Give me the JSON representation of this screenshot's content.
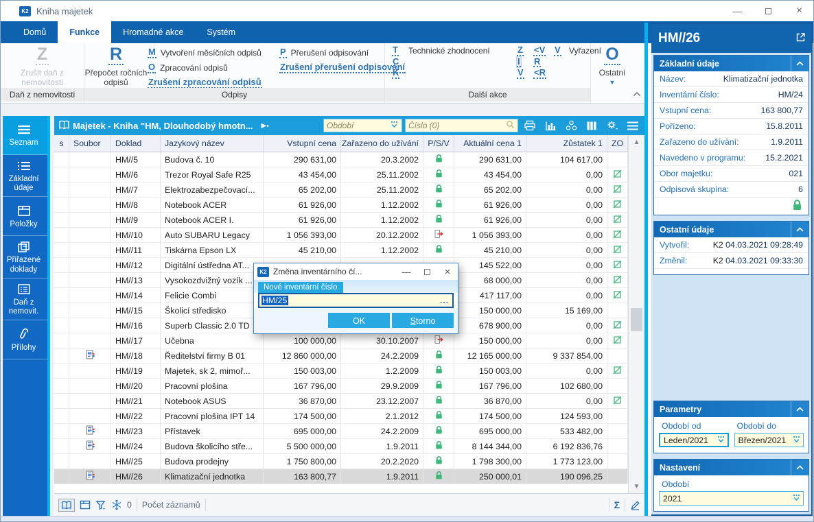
{
  "window": {
    "title": "Kniha majetek"
  },
  "ribbon": {
    "tabs": [
      {
        "label": "Domů"
      },
      {
        "label": "Funkce",
        "active": true
      },
      {
        "label": "Hromadné akce"
      },
      {
        "label": "Systém"
      }
    ],
    "dan_group": {
      "label": "Daň z nemovitosti",
      "big_letter": "Z",
      "big_caption": "Zrušit daň z nemovitosti"
    },
    "odpisy_group": {
      "label": "Odpisy",
      "big_letter": "R",
      "big_caption": "Přepočet ročních odpisů",
      "col1": [
        {
          "letter": "M",
          "text": "Vytvoření měsíčních odpisů"
        },
        {
          "letter": "O",
          "text": "Zpracování odpisů"
        },
        {
          "letter": "<O",
          "text": "Zrušení zpracování odpisů"
        }
      ],
      "col2": [
        {
          "letter": "P",
          "text": "Přerušení odpisování"
        },
        {
          "letter": "<P",
          "text": "Zrušení přerušení odpisování"
        }
      ]
    },
    "dalsi_group": {
      "label": "Další akce",
      "rows": [
        {
          "a": "T",
          "alabel": "Technické zhodnocení",
          "b": "Z",
          "c": "<V",
          "d": "V",
          "dlabel": "Vyřazení"
        },
        {
          "a": "C",
          "alabel": "",
          "b": "I",
          "b_highlight": true,
          "c": "R",
          "d": "",
          "dlabel": ""
        },
        {
          "a": "K",
          "alabel": "",
          "b": "V",
          "c": "<R",
          "d": "",
          "dlabel": ""
        }
      ]
    },
    "ostatni_group": {
      "big_letter": "O",
      "caption": "Ostatní"
    }
  },
  "sidebar": {
    "items": [
      {
        "label": "Seznam",
        "icon": "menu-icon",
        "active": true
      },
      {
        "label": "Základní údaje",
        "icon": "list-icon"
      },
      {
        "label": "Položky",
        "icon": "box-icon"
      },
      {
        "label": "Přiřazené doklady",
        "icon": "documents-icon"
      },
      {
        "label": "Daň z nemovit.",
        "icon": "form-icon"
      },
      {
        "label": "Přílohy",
        "icon": "paperclip-icon"
      }
    ]
  },
  "table": {
    "title": "Majetek - Kniha \"HM, Dlouhodobý hmotn...",
    "obdobi_placeholder": "Období",
    "cislo_placeholder": "Číslo (0)",
    "columns": [
      "s",
      "Soubor",
      "Doklad",
      "Jazykový název",
      "Vstupní cena",
      "Zařazeno do užívání",
      "P/S/V",
      "Aktuální cena 1",
      "Zůstatek 1",
      "ZO"
    ],
    "rows": [
      {
        "doklad": "HM//5",
        "soubor": false,
        "nazev": "Budova č. 10",
        "vstupni": "290 631,00",
        "zarazeno": "20.3.2002",
        "psv": "lock",
        "aktualni": "290 631,00",
        "zustatek": "104 617,00",
        "zo": false
      },
      {
        "doklad": "HM//6",
        "soubor": false,
        "nazev": "Trezor Royal Safe R25",
        "vstupni": "43 454,00",
        "zarazeno": "25.11.2002",
        "psv": "lock",
        "aktualni": "43 454,00",
        "zustatek": "0,00",
        "zo": true
      },
      {
        "doklad": "HM//7",
        "soubor": false,
        "nazev": "Elektrozabezpečovací...",
        "vstupni": "65 202,00",
        "zarazeno": "25.11.2002",
        "psv": "lock",
        "aktualni": "65 202,00",
        "zustatek": "0,00",
        "zo": true
      },
      {
        "doklad": "HM//8",
        "soubor": false,
        "nazev": "Notebook ACER",
        "vstupni": "61 926,00",
        "zarazeno": "1.12.2002",
        "psv": "lock",
        "aktualni": "61 926,00",
        "zustatek": "0,00",
        "zo": true
      },
      {
        "doklad": "HM//9",
        "soubor": false,
        "nazev": "Notebook ACER I.",
        "vstupni": "61 926,00",
        "zarazeno": "1.12.2002",
        "psv": "lock",
        "aktualni": "61 926,00",
        "zustatek": "0,00",
        "zo": true
      },
      {
        "doklad": "HM//10",
        "soubor": false,
        "nazev": "Auto SUBARU Legacy",
        "vstupni": "1 056 393,00",
        "zarazeno": "20.12.2002",
        "psv": "exit",
        "aktualni": "1 056 393,00",
        "zustatek": "0,00",
        "zo": true
      },
      {
        "doklad": "HM//11",
        "soubor": false,
        "nazev": "Tiskárna Epson LX",
        "vstupni": "45 210,00",
        "zarazeno": "1.12.2002",
        "psv": "lock",
        "aktualni": "45 210,00",
        "zustatek": "0,00",
        "zo": true
      },
      {
        "doklad": "HM//12",
        "soubor": false,
        "nazev": "Digitální ústředna AT...",
        "vstupni": "",
        "zarazeno": "",
        "psv": "",
        "aktualni": "145 522,00",
        "zustatek": "0,00",
        "zo": true
      },
      {
        "doklad": "HM//13",
        "soubor": false,
        "nazev": "Vysokozdvižný vozík ...",
        "vstupni": "",
        "zarazeno": "",
        "psv": "",
        "aktualni": "68 000,00",
        "zustatek": "0,00",
        "zo": true
      },
      {
        "doklad": "HM//14",
        "soubor": false,
        "nazev": "Felicie Combi",
        "vstupni": "",
        "zarazeno": "",
        "psv": "",
        "aktualni": "417 117,00",
        "zustatek": "0,00",
        "zo": true
      },
      {
        "doklad": "HM//15",
        "soubor": false,
        "nazev": "Školicí středisko",
        "vstupni": "",
        "zarazeno": "",
        "psv": "",
        "aktualni": "150 000,00",
        "zustatek": "15 169,00",
        "zo": false
      },
      {
        "doklad": "HM//16",
        "soubor": false,
        "nazev": "Superb Classic  2.0 TD",
        "vstupni": "",
        "zarazeno": "",
        "psv": "",
        "aktualni": "678 900,00",
        "zustatek": "0,00",
        "zo": true
      },
      {
        "doklad": "HM//17",
        "soubor": false,
        "nazev": "Učebna",
        "vstupni": "100 000,00",
        "zarazeno": "30.10.2007",
        "psv": "exit",
        "aktualni": "150 000,00",
        "zustatek": "0,00",
        "zo": true
      },
      {
        "doklad": "HM//18",
        "soubor": true,
        "nazev": "Ředitelství firmy B 01",
        "vstupni": "12 860 000,00",
        "zarazeno": "24.2.2009",
        "psv": "lock",
        "aktualni": "12 165 000,00",
        "zustatek": "9 337 854,00",
        "zo": false
      },
      {
        "doklad": "HM//19",
        "soubor": false,
        "nazev": "Majetek, sk 2, mimoř...",
        "vstupni": "150 003,00",
        "zarazeno": "1.2.2009",
        "psv": "lock",
        "aktualni": "150 003,00",
        "zustatek": "0,00",
        "zo": true
      },
      {
        "doklad": "HM//20",
        "soubor": false,
        "nazev": "Pracovní plošina",
        "vstupni": "167 796,00",
        "zarazeno": "29.9.2009",
        "psv": "lock",
        "aktualni": "167 796,00",
        "zustatek": "102 680,00",
        "zo": false
      },
      {
        "doklad": "HM//21",
        "soubor": false,
        "nazev": "Notebook ASUS",
        "vstupni": "36 870,00",
        "zarazeno": "23.12.2007",
        "psv": "lock",
        "aktualni": "36 870,00",
        "zustatek": "0,00",
        "zo": true
      },
      {
        "doklad": "HM//22",
        "soubor": false,
        "nazev": "Pracovní plošina IPT 14",
        "vstupni": "174 500,00",
        "zarazeno": "2.1.2012",
        "psv": "lock",
        "aktualni": "174 500,00",
        "zustatek": "124 593,00",
        "zo": false
      },
      {
        "doklad": "HM//23",
        "soubor": true,
        "nazev": "Přístavek",
        "vstupni": "695 000,00",
        "zarazeno": "24.2.2009",
        "psv": "lock",
        "aktualni": "695 000,00",
        "zustatek": "533 482,00",
        "zo": false
      },
      {
        "doklad": "HM//24",
        "soubor": true,
        "nazev": "Budova školicího stře...",
        "vstupni": "5 500 000,00",
        "zarazeno": "1.9.2011",
        "psv": "lock",
        "aktualni": "8 144 344,00",
        "zustatek": "6 192 836,76",
        "zo": false
      },
      {
        "doklad": "HM//25",
        "soubor": false,
        "nazev": "Budova prodejny",
        "vstupni": "1 750 800,00",
        "zarazeno": "20.2.2020",
        "psv": "lock",
        "aktualni": "1 798 300,00",
        "zustatek": "1 773 123,00",
        "zo": false
      },
      {
        "doklad": "HM//26",
        "soubor": true,
        "nazev": "Klimatizační jednotka",
        "vstupni": "163 800,77",
        "zarazeno": "1.9.2011",
        "psv": "lock",
        "aktualni": "250 000,01",
        "zustatek": "190 096,25",
        "zo": false,
        "selected": true
      }
    ],
    "footer": {
      "snow_count": "0",
      "count_label": "Počet záznamů"
    }
  },
  "dialog": {
    "title": "Změna inventárního čí...",
    "field_label": "Nové inventární číslo",
    "field_value": "HM/25",
    "browse_label": "...",
    "ok_label": "OK",
    "cancel_label": "Storno"
  },
  "detail_panel": {
    "title": "HM//26",
    "zakladni": {
      "title": "Základní údaje",
      "fields": [
        {
          "label": "Název:",
          "value": "Klimatizační jednotka"
        },
        {
          "label": "Inventární číslo:",
          "value": "HM/24"
        },
        {
          "label": "Vstupní cena:",
          "value": "163 800,77"
        },
        {
          "label": "Pořízeno:",
          "value": "15.8.2011"
        },
        {
          "label": "Zařazeno do užívání:",
          "value": "1.9.2011"
        },
        {
          "label": "Navedeno v programu:",
          "value": "15.2.2021"
        },
        {
          "label": "Obor majetku:",
          "value": "021"
        },
        {
          "label": "Odpisová skupina:",
          "value": "6"
        }
      ]
    },
    "ostatni": {
      "title": "Ostatní údaje",
      "fields": [
        {
          "label": "Vytvořil:",
          "user": "K2",
          "value": "04.03.2021 09:28:49"
        },
        {
          "label": "Změnil:",
          "user": "K2",
          "value": "04.03.2021 09:33:30"
        }
      ]
    },
    "parametry": {
      "title": "Parametry",
      "od_label": "Období od",
      "od_value": "Leden/2021",
      "do_label": "Období do",
      "do_value": "Březen/2021"
    },
    "nastaveni": {
      "title": "Nastavení",
      "obdobi_label": "Období",
      "obdobi_value": "2021"
    }
  },
  "colors": {
    "accent_blue": "#0f62ae",
    "cyan": "#00b4f4",
    "table_bar": "#1b9ddc",
    "button_cyan": "#29a9e1",
    "lock_green": "#3cb87a",
    "exit_red": "#d23b2f",
    "input_yellow": "#fffbdf"
  }
}
